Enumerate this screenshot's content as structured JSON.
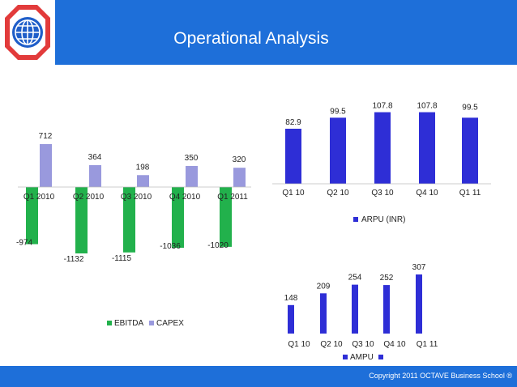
{
  "slide": {
    "title": "Operational Analysis",
    "copyright": "Copyright 2011   OCTAVE Business School ®",
    "colors": {
      "header": "#1e6fd9",
      "logo_red": "#e23b3b",
      "logo_blue": "#1f5ec9"
    }
  },
  "chart_data": [
    {
      "type": "bar",
      "categories": [
        "Q1 2010",
        "Q2 2010",
        "Q3 2010",
        "Q4 2010",
        "Q1 2011"
      ],
      "series": [
        {
          "name": "EBITDA",
          "values": [
            -974,
            -1132,
            -1115,
            -1036,
            -1020
          ],
          "color": "#22b14c"
        },
        {
          "name": "CAPEX",
          "values": [
            712,
            364,
            198,
            350,
            320
          ],
          "color": "#9999dd"
        }
      ],
      "legend": "bottom"
    },
    {
      "type": "bar",
      "categories": [
        "Q1 10",
        "Q2 10",
        "Q3 10",
        "Q4 10",
        "Q1 11"
      ],
      "series": [
        {
          "name": "ARPU (INR)",
          "values": [
            82.9,
            99.5,
            107.8,
            107.8,
            99.5
          ],
          "color": "#2e2ed6"
        }
      ],
      "legend": "bottom"
    },
    {
      "type": "bar",
      "categories": [
        "Q1 10",
        "Q2 10",
        "Q3 10",
        "Q4 10",
        "Q1 11"
      ],
      "series": [
        {
          "name": "AMPU",
          "values": [
            148,
            209,
            254,
            252,
            307
          ],
          "color": "#2e2ed6"
        }
      ],
      "legend": "bottom"
    }
  ]
}
